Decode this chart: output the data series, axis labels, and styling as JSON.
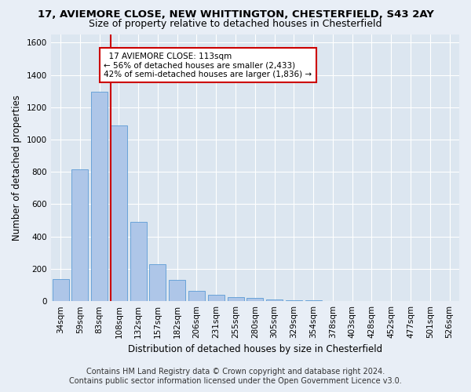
{
  "title_line1": "17, AVIEMORE CLOSE, NEW WHITTINGTON, CHESTERFIELD, S43 2AY",
  "title_line2": "Size of property relative to detached houses in Chesterfield",
  "xlabel": "Distribution of detached houses by size in Chesterfield",
  "ylabel": "Number of detached properties",
  "categories": [
    "34sqm",
    "59sqm",
    "83sqm",
    "108sqm",
    "132sqm",
    "157sqm",
    "182sqm",
    "206sqm",
    "231sqm",
    "255sqm",
    "280sqm",
    "305sqm",
    "329sqm",
    "354sqm",
    "378sqm",
    "403sqm",
    "428sqm",
    "452sqm",
    "477sqm",
    "501sqm",
    "526sqm"
  ],
  "values": [
    135,
    815,
    1295,
    1085,
    490,
    230,
    130,
    65,
    38,
    27,
    18,
    12,
    8,
    5,
    3,
    2,
    1,
    1,
    0,
    0,
    0
  ],
  "bar_color": "#aec6e8",
  "bar_edge_color": "#5b9bd5",
  "property_bin_index": 3,
  "annotation_line1": "  17 AVIEMORE CLOSE: 113sqm",
  "annotation_line2": "← 56% of detached houses are smaller (2,433)",
  "annotation_line3": "42% of semi-detached houses are larger (1,836) →",
  "vline_color": "#cc0000",
  "annotation_box_color": "#cc0000",
  "ylim": [
    0,
    1650
  ],
  "yticks": [
    0,
    200,
    400,
    600,
    800,
    1000,
    1200,
    1400,
    1600
  ],
  "footer_line1": "Contains HM Land Registry data © Crown copyright and database right 2024.",
  "footer_line2": "Contains public sector information licensed under the Open Government Licence v3.0.",
  "background_color": "#e8eef6",
  "plot_background_color": "#dce6f0",
  "grid_color": "#ffffff",
  "title1_fontsize": 9.5,
  "title2_fontsize": 9,
  "axis_label_fontsize": 8.5,
  "tick_fontsize": 7.5,
  "annotation_fontsize": 7.5,
  "footer_fontsize": 7
}
